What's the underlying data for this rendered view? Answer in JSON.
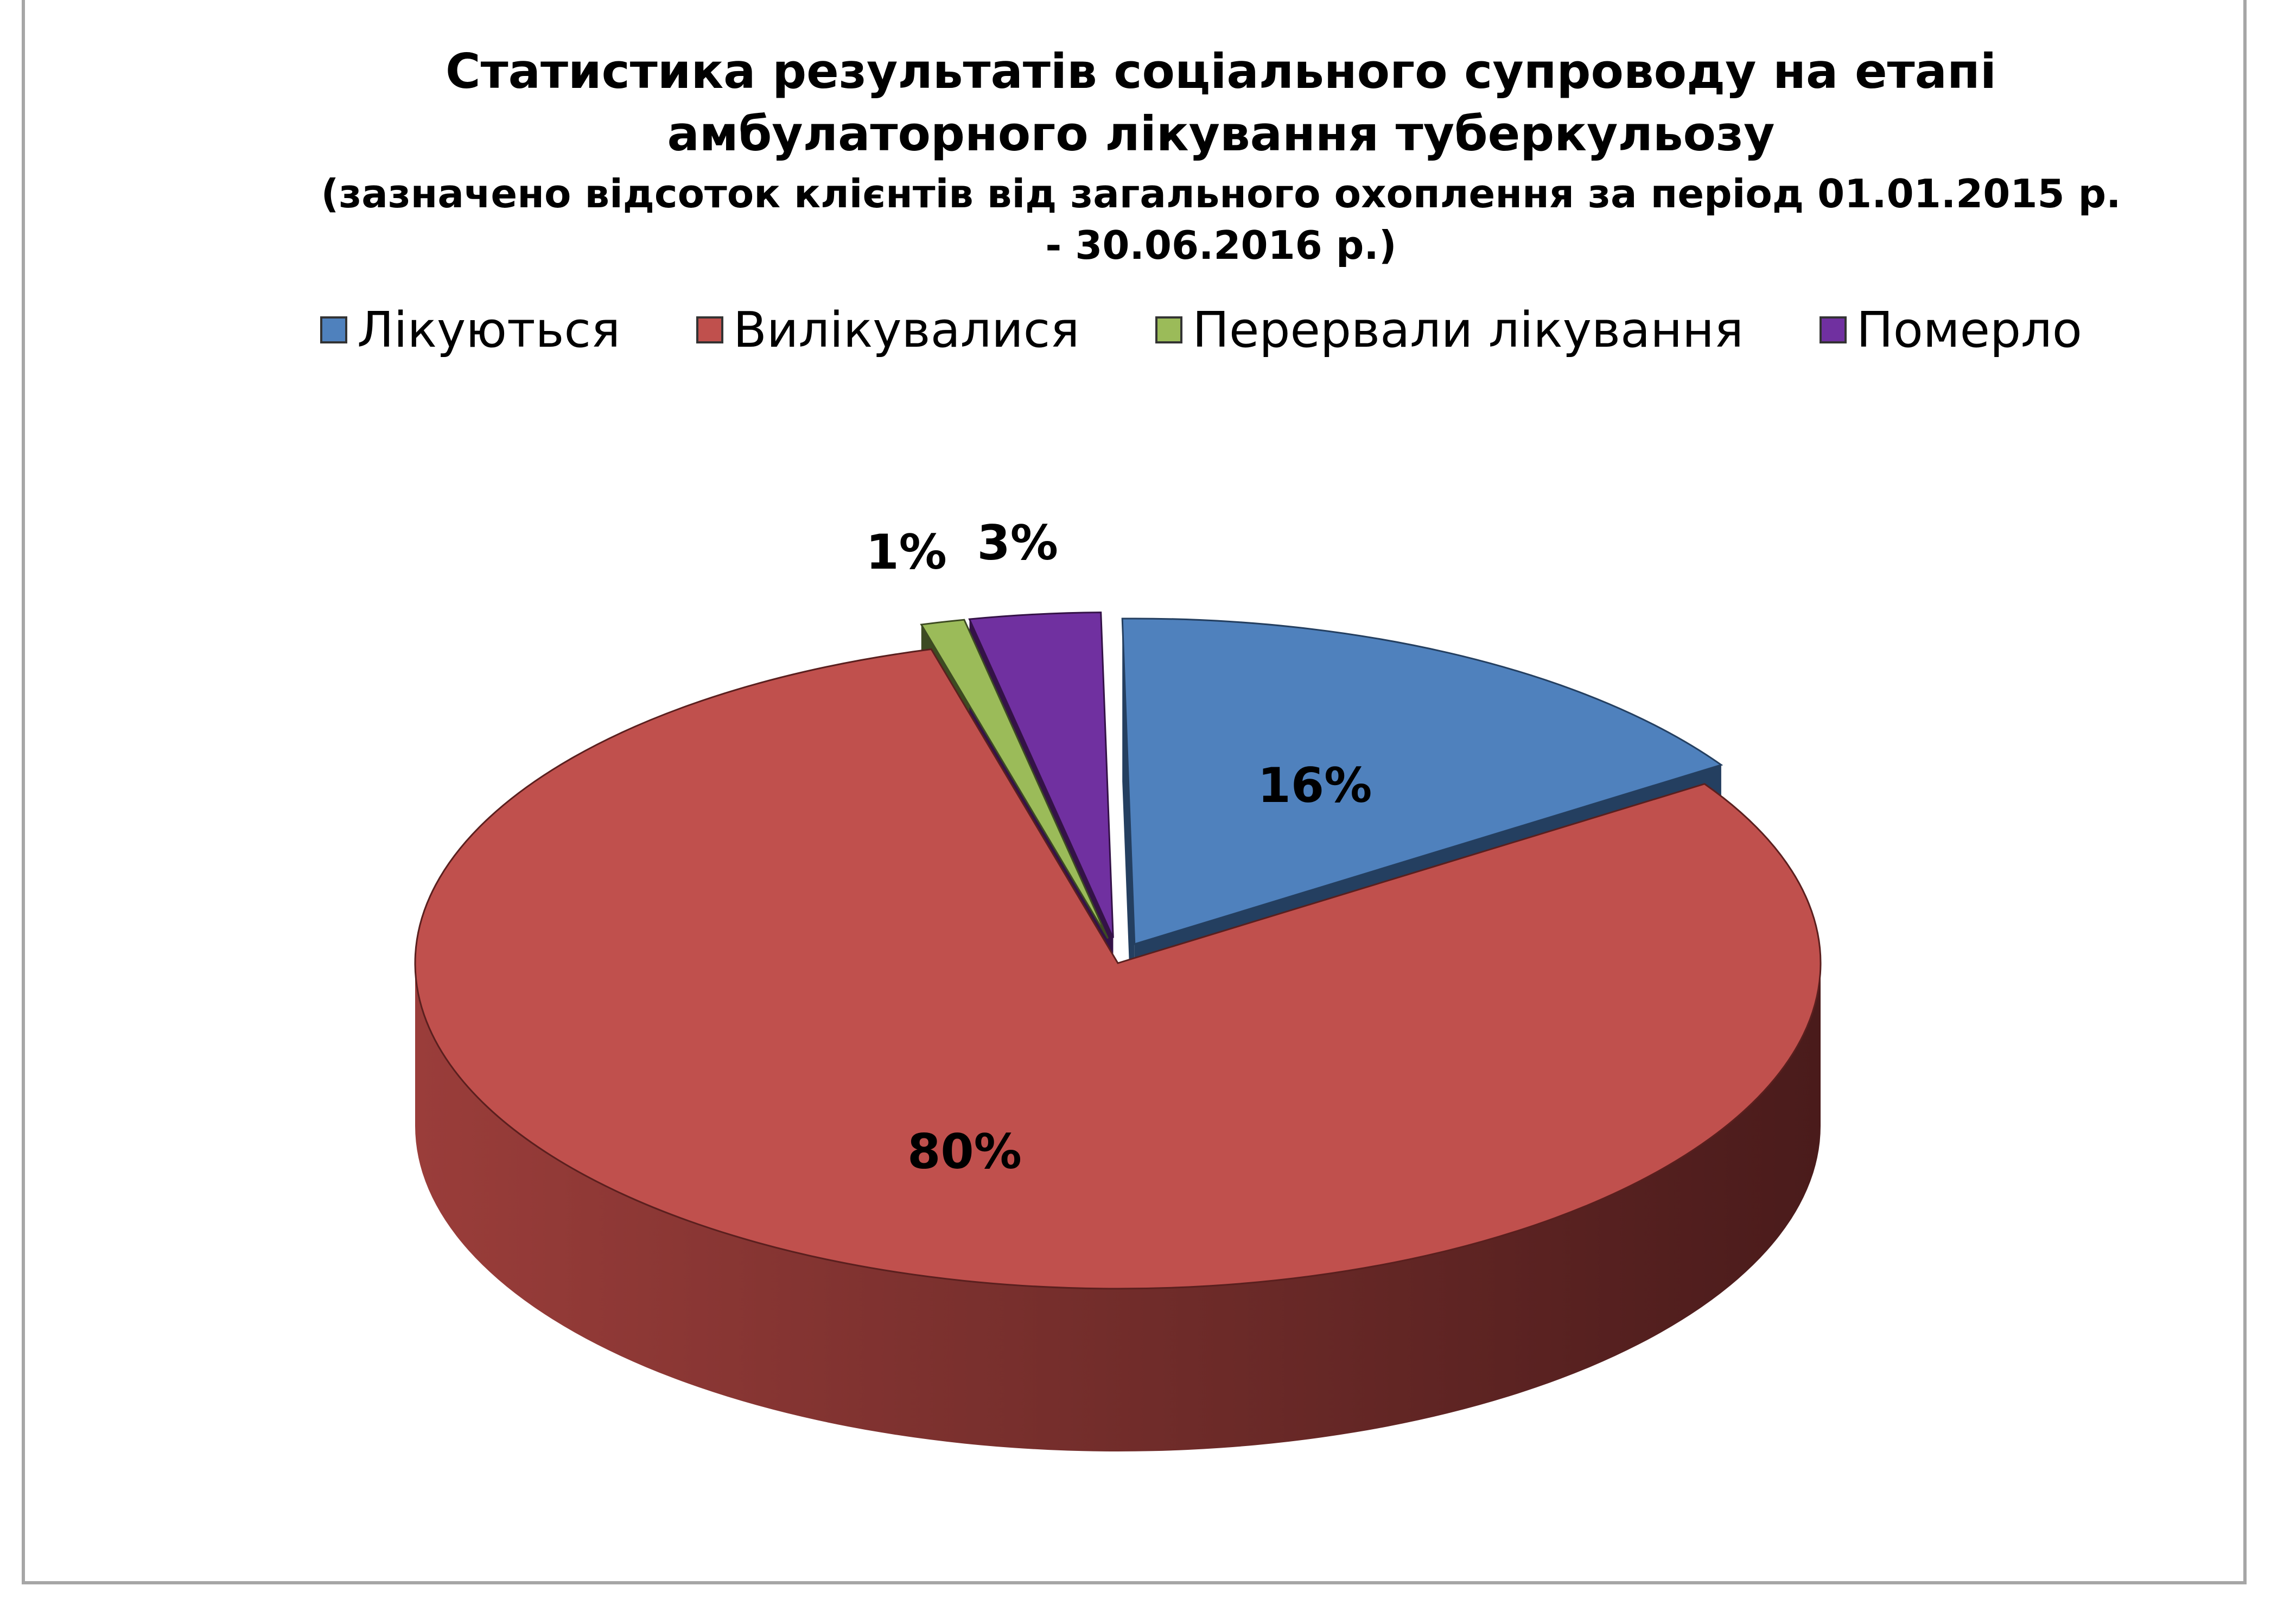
{
  "chart_data": {
    "type": "pie",
    "title_line1": "Статистика результатів соціального супроводу на етапі",
    "title_line2": "амбулаторного лікування туберкульозу",
    "subtitle_line1": "(зазначено відсоток клієнтів від загального охоплення за період 01.01.2015 р.",
    "subtitle_line2": "- 30.06.2016 р.)",
    "legend_position": "top",
    "categories": [
      "Лікуються",
      "Вилікувалися",
      "Перервали лікування",
      "Померло"
    ],
    "values": [
      16,
      80,
      1,
      3
    ],
    "data_labels": [
      "16%",
      "80%",
      "1%",
      "3%"
    ],
    "colors": [
      "#4f81bd",
      "#c0504d",
      "#9bbb59",
      "#7030a0"
    ],
    "side_colors": [
      "#243f60",
      "#5a1f1e",
      "#3d4b22",
      "#341247"
    ]
  }
}
